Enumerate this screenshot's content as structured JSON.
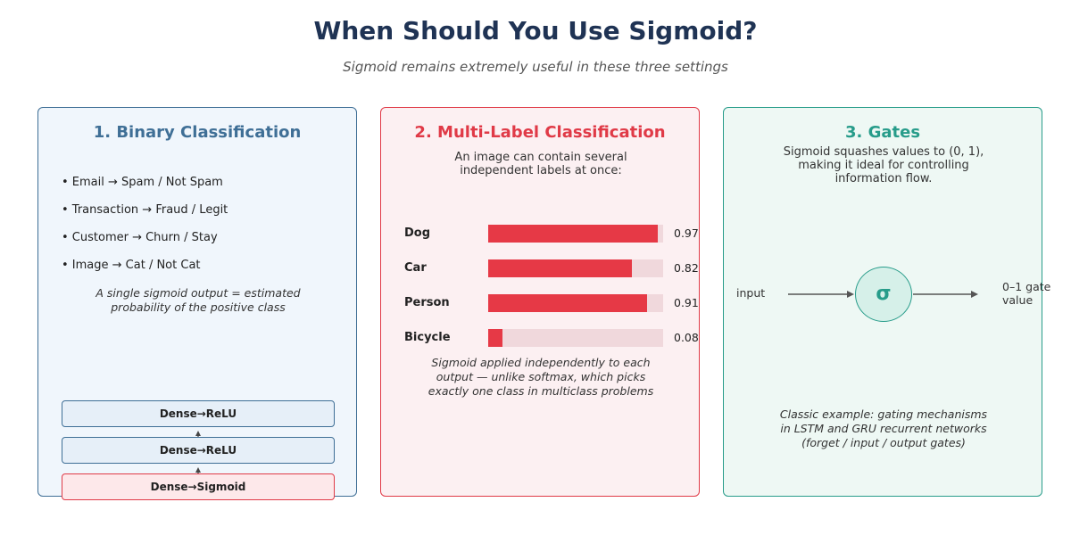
{
  "header": {
    "title": "When Should You Use Sigmoid?",
    "subtitle": "Sigmoid remains extremely useful in these three settings"
  },
  "colors": {
    "binary": "#3f6f96",
    "multilabel": "#e03a47",
    "gates": "#279c8a"
  },
  "binary": {
    "title": "1. Binary Classification",
    "bullets": [
      "• Email → Spam / Not Spam",
      "• Transaction → Fraud / Legit",
      "• Customer → Churn / Stay",
      "• Image → Cat / Not Cat"
    ],
    "note_line1": "A single sigmoid output = estimated",
    "note_line2": "probability of the positive class",
    "layers": [
      "Dense→ReLU",
      "Dense→ReLU",
      "Dense→Sigmoid"
    ]
  },
  "multilabel": {
    "title": "2. Multi-Label Classification",
    "intro_line1": "An image can contain several",
    "intro_line2": "independent labels at once:",
    "labels": [
      {
        "name": "Dog",
        "value": "0.97",
        "fraction": 0.97
      },
      {
        "name": "Car",
        "value": "0.82",
        "fraction": 0.82
      },
      {
        "name": "Person",
        "value": "0.91",
        "fraction": 0.91
      },
      {
        "name": "Bicycle",
        "value": "0.08",
        "fraction": 0.08
      }
    ],
    "note_line1": "Sigmoid applied independently to each",
    "note_line2": "output — unlike softmax, which picks",
    "note_line3": "exactly one class in multiclass problems"
  },
  "gates": {
    "title": "3. Gates",
    "intro_line1": "Sigmoid squashes values to (0, 1),",
    "intro_line2": "making it ideal for controlling",
    "intro_line3": "information flow.",
    "input_label": "input",
    "sigma_symbol": "σ",
    "output_line1": "0–1 gate",
    "output_line2": "value",
    "note_line1": "Classic example: gating mechanisms",
    "note_line2": "in LSTM and GRU recurrent networks",
    "note_line3": "(forget / input / output gates)"
  }
}
